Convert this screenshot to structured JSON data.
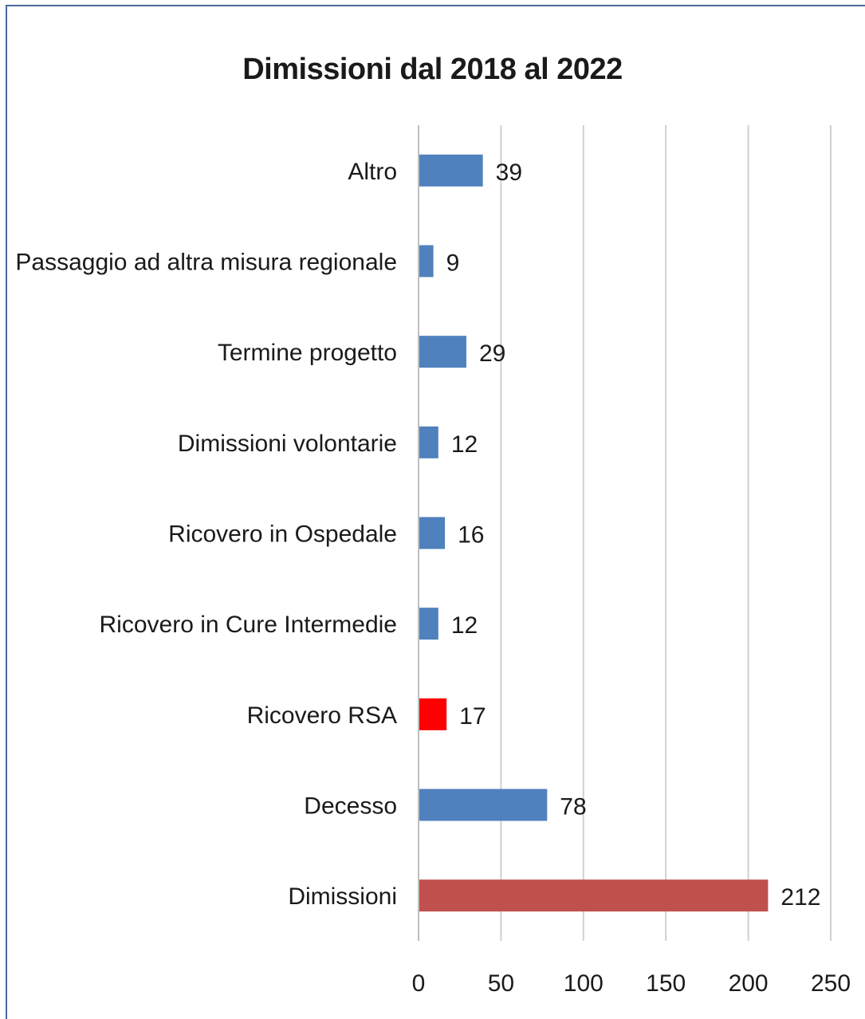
{
  "chart_data": {
    "type": "bar",
    "orientation": "horizontal",
    "title": "Dimissioni dal 2018 al 2022",
    "xlabel": "",
    "ylabel": "",
    "xlim": [
      0,
      250
    ],
    "ticks": [
      0,
      50,
      100,
      150,
      200,
      250
    ],
    "grid": true,
    "legend": "none",
    "categories": [
      "Altro",
      "Passaggio ad altra misura regionale",
      "Termine progetto",
      "Dimissioni volontarie",
      "Ricovero in Ospedale",
      "Ricovero in Cure Intermedie",
      "Ricovero RSA",
      "Decesso",
      "Dimissioni"
    ],
    "values": [
      39,
      9,
      29,
      12,
      16,
      12,
      17,
      78,
      212
    ],
    "bar_colors": [
      "#4f81bd",
      "#4f81bd",
      "#4f81bd",
      "#4f81bd",
      "#4f81bd",
      "#4f81bd",
      "#ff0000",
      "#4f81bd",
      "#c0504d"
    ]
  }
}
